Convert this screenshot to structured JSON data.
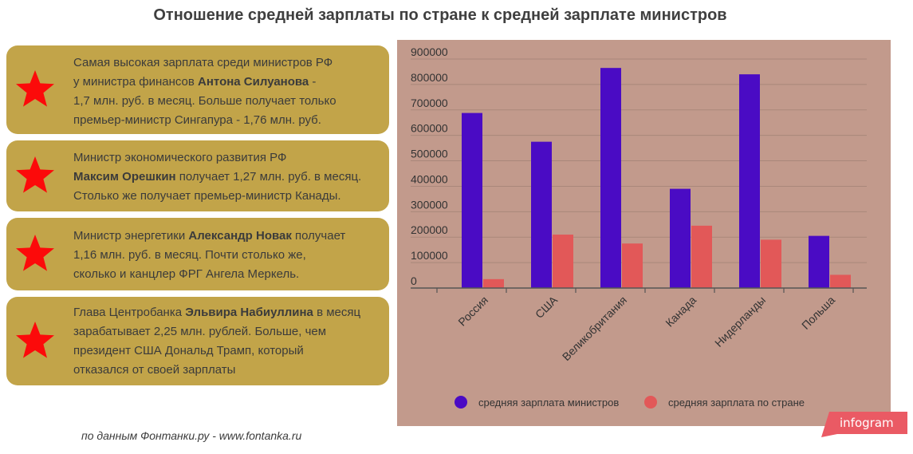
{
  "title": "Отношение средней зарплаты по стране к средней зарплате министров",
  "cards": [
    {
      "lines": [
        [
          {
            "t": "Самая высокая зарплата среди министров РФ",
            "b": false
          }
        ],
        [
          {
            "t": "у министра финансов ",
            "b": false
          },
          {
            "t": "Антона Силуанова",
            "b": true
          },
          {
            "t": " -",
            "b": false
          }
        ],
        [
          {
            "t": "1,7 млн. руб. в месяц. Больше получает только",
            "b": false
          }
        ],
        [
          {
            "t": "премьер-министр Сингапура - 1,76 млн. руб.",
            "b": false
          }
        ]
      ]
    },
    {
      "lines": [
        [
          {
            "t": "Министр экономического развития РФ",
            "b": false
          }
        ],
        [
          {
            "t": "Максим Орешкин",
            "b": true
          },
          {
            "t": " получает 1,27 млн. руб. в месяц.",
            "b": false
          }
        ],
        [
          {
            "t": "Столько же получает премьер-министр Канады.",
            "b": false
          }
        ]
      ]
    },
    {
      "lines": [
        [
          {
            "t": "Министр энергетики ",
            "b": false
          },
          {
            "t": "Александр Новак",
            "b": true
          },
          {
            "t": " получает",
            "b": false
          }
        ],
        [
          {
            "t": "1,16 млн. руб. в месяц. Почти столько же,",
            "b": false
          }
        ],
        [
          {
            "t": "сколько и канцлер ФРГ Ангела Меркель.",
            "b": false
          }
        ]
      ]
    },
    {
      "lines": [
        [
          {
            "t": "Глава Центробанка ",
            "b": false
          },
          {
            "t": "Эльвира Набиуллина",
            "b": true
          },
          {
            "t": " в месяц",
            "b": false
          }
        ],
        [
          {
            "t": "зарабатывает 2,25 млн. рублей. Больше, чем",
            "b": false
          }
        ],
        [
          {
            "t": "президент США Дональд Трамп, который",
            "b": false
          }
        ],
        [
          {
            "t": "отказался от своей зарплаты",
            "b": false
          }
        ]
      ]
    }
  ],
  "source": "по данным Фонтанки.ру - www.fontanka.ru",
  "brand": "infogram",
  "colors": {
    "card_bg": "#c2a449",
    "star": "#fc0a0a",
    "panel_bg": "#c29a8c",
    "series1": "#4a0bc4",
    "series2": "#e25858",
    "brand": "#ea5a64"
  },
  "chart_data": {
    "type": "bar",
    "categories": [
      "Россия",
      "США",
      "Великобритания",
      "Канада",
      "Нидерланды",
      "Польша"
    ],
    "series": [
      {
        "name": "средняя зарплата министров",
        "values": [
          688000,
          575000,
          865000,
          390000,
          840000,
          205000
        ]
      },
      {
        "name": "средняя зарплата по стране",
        "values": [
          35000,
          210000,
          175000,
          245000,
          190000,
          52000
        ]
      }
    ],
    "yticks": [
      "900000",
      "800000",
      "700000",
      "600000",
      "500000",
      "400000",
      "300000",
      "200000",
      "100000",
      "0"
    ],
    "ylim": [
      0,
      900000
    ],
    "grid": true,
    "legend": "bottom"
  }
}
